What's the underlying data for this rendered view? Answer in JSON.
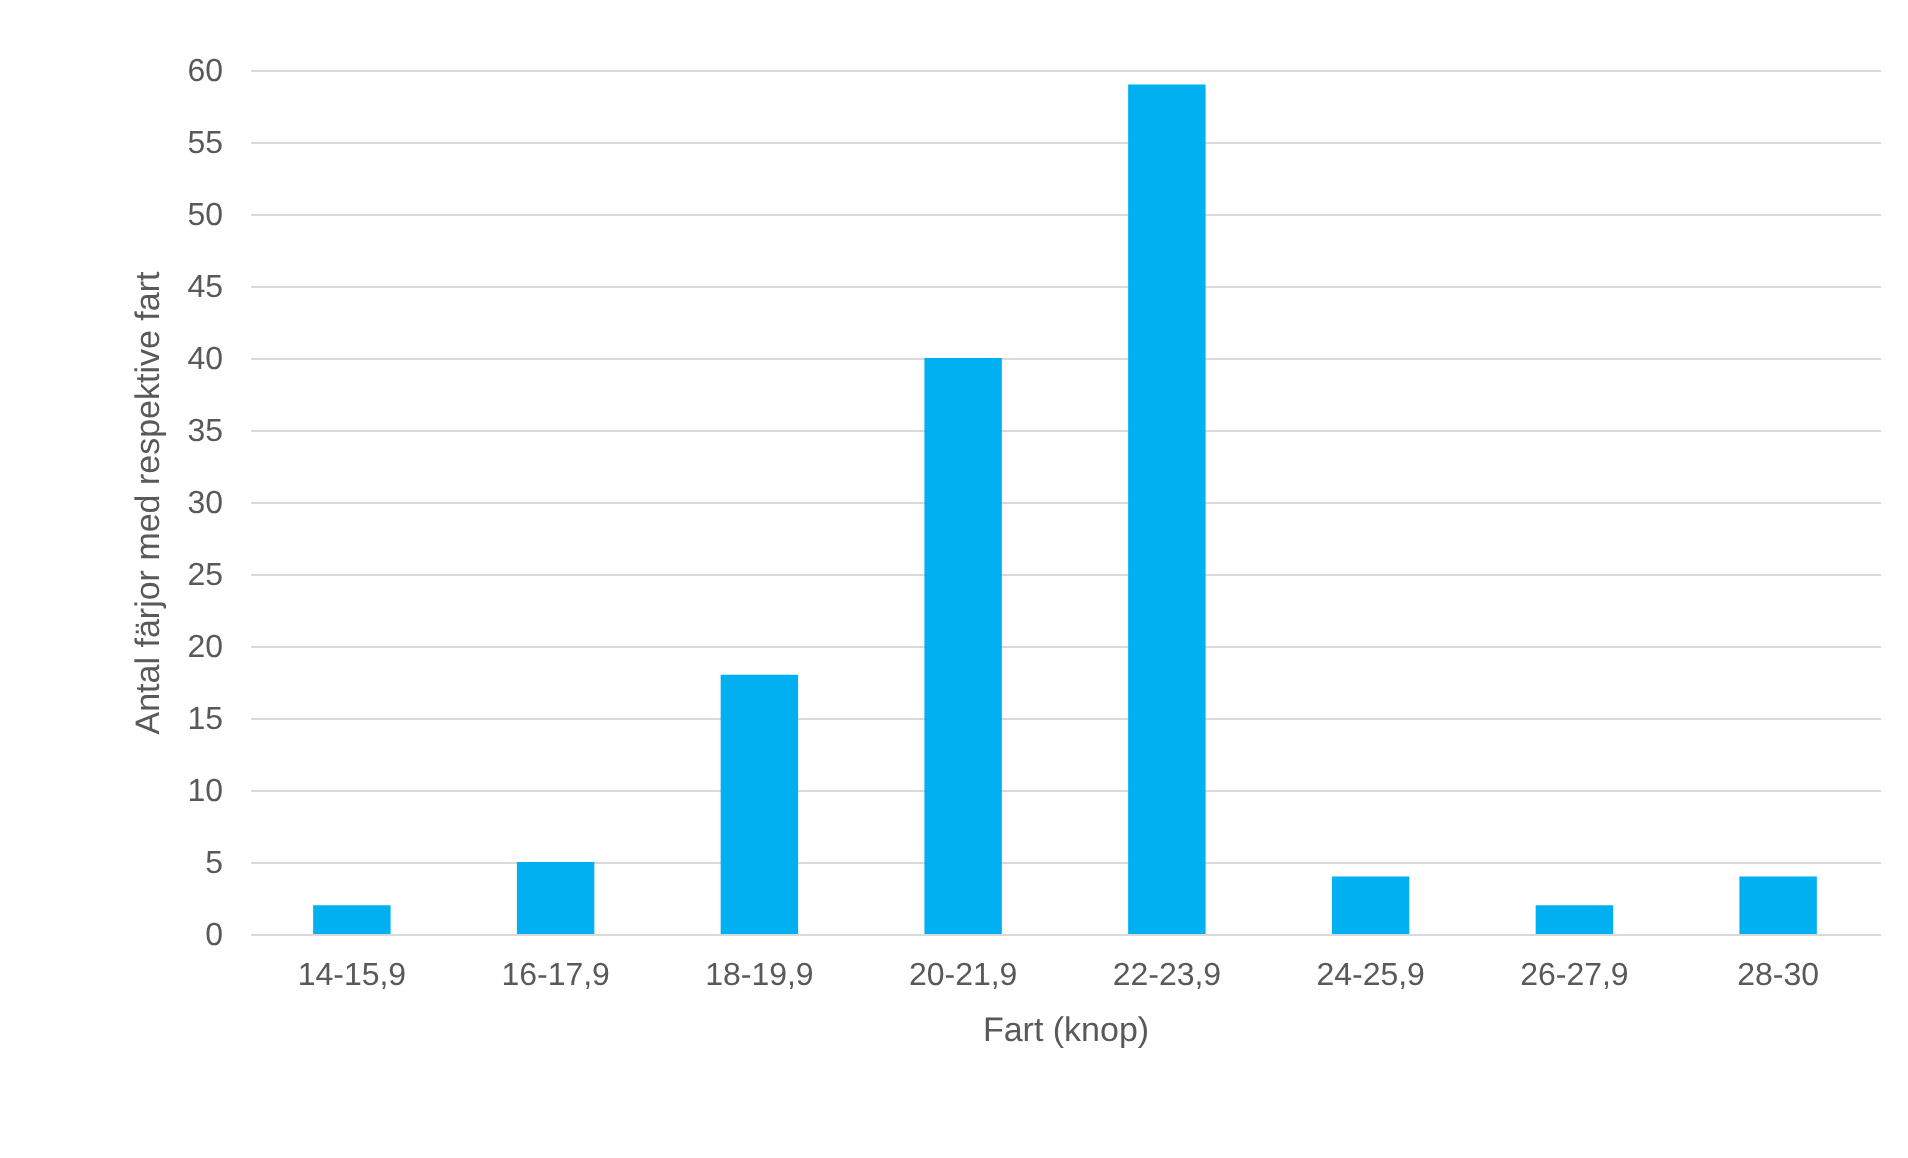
{
  "chart_data": {
    "type": "bar",
    "xlabel": "Fart (knop)",
    "ylabel": "Antal färjor med respektive fart",
    "categories": [
      "14-15,9",
      "16-17,9",
      "18-19,9",
      "20-21,9",
      "22-23,9",
      "24-25,9",
      "26-27,9",
      "28-30"
    ],
    "values": [
      2,
      5,
      18,
      40,
      59,
      4,
      2,
      4
    ],
    "color": "#00b0f0",
    "ylim": [
      0,
      60
    ],
    "yticks": [
      0,
      5,
      10,
      15,
      20,
      25,
      30,
      35,
      40,
      45,
      50,
      55,
      60
    ],
    "grid": "y"
  }
}
